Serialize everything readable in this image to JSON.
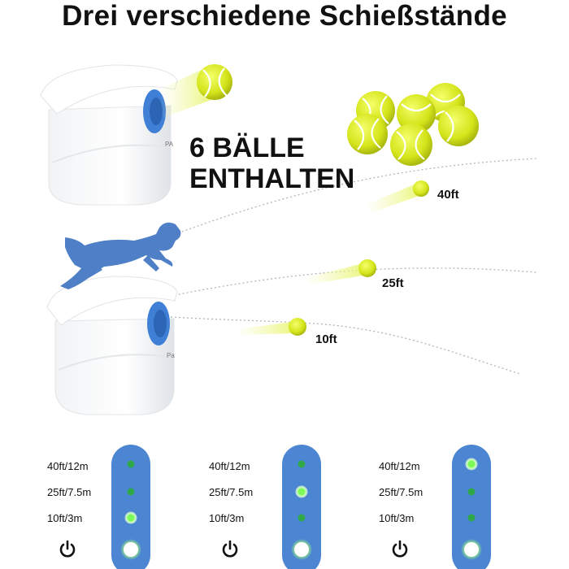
{
  "title": "Drei verschiedene Schießstände",
  "headline": {
    "line1": "6 BÄLLE",
    "line2": "ENTHALTEN"
  },
  "distances": [
    "40ft",
    "25ft",
    "10ft"
  ],
  "panels": [
    {
      "labels": [
        "40ft/12m",
        "25ft/7.5m",
        "10ft/3m"
      ],
      "active": 2
    },
    {
      "labels": [
        "40ft/12m",
        "25ft/7.5m",
        "10ft/3m"
      ],
      "active": 1
    },
    {
      "labels": [
        "40ft/12m",
        "25ft/7.5m",
        "10ft/3m"
      ],
      "active": 0
    }
  ],
  "colors": {
    "ball": "#d8e81c",
    "ball_seam": "#ffffff",
    "launcher_blue": "#3f7fd6",
    "dog": "#4f7fc6",
    "panel_blue": "#4c86d2",
    "led_on": "#7cfa5a",
    "led_off": "#2fa84a"
  },
  "icons": [
    "power-icon",
    "dog-silhouette",
    "tennis-ball",
    "ball-launcher"
  ]
}
